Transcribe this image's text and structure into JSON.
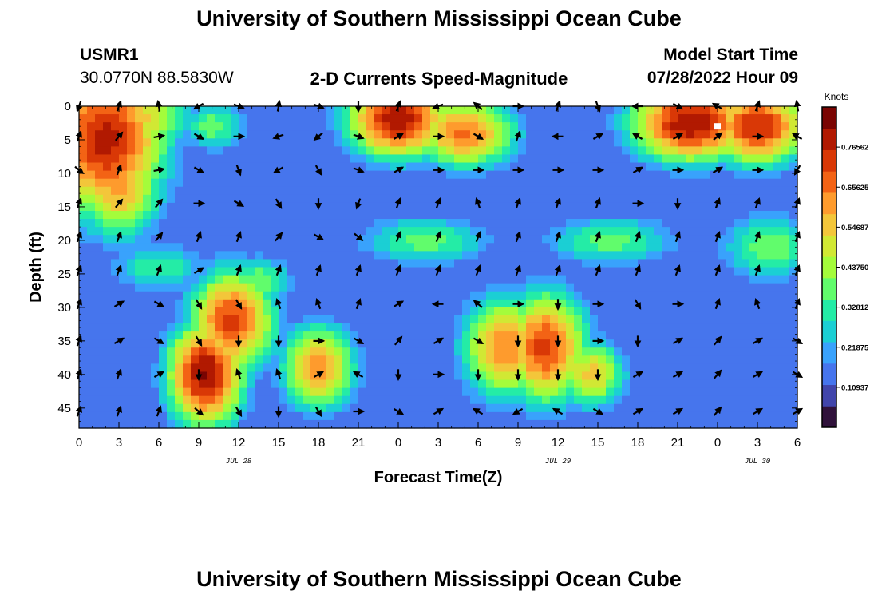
{
  "page": {
    "title": "University of Southern Mississippi Ocean Cube",
    "title_repeat": "University of Southern Mississippi Ocean Cube",
    "station_id": "USMR1",
    "coords": "30.0770N  88.5830W",
    "subtitle": "2-D Currents Speed-Magnitude",
    "model_start_label": "Model Start Time",
    "model_start_value": "07/28/2022 Hour 09"
  },
  "chart_data": {
    "type": "heatmap",
    "title": "2-D Currents Speed-Magnitude",
    "xlabel": "Forecast Time(Z)",
    "ylabel": "Depth (ft)",
    "x_tick_labels": [
      "0",
      "3",
      "6",
      "9",
      "12",
      "15",
      "18",
      "21",
      "0",
      "3",
      "6",
      "9",
      "12",
      "15",
      "18",
      "21",
      "0",
      "3",
      "6"
    ],
    "x_range_hours": [
      0,
      54
    ],
    "date_labels": [
      {
        "text": "JUL 28",
        "hour": 12
      },
      {
        "text": "JUL 29",
        "hour": 36
      },
      {
        "text": "JUL 30",
        "hour": 51
      }
    ],
    "y_ticks": [
      0,
      5,
      10,
      15,
      20,
      25,
      30,
      35,
      40,
      45
    ],
    "y_range_ft": [
      0,
      48
    ],
    "colorbar": {
      "label": "Knots",
      "ticks": [
        "0.76562",
        "0.65625",
        "0.54687",
        "0.43750",
        "0.32812",
        "0.21875",
        "0.10937"
      ],
      "range": [
        0,
        0.875
      ],
      "colors": [
        "#30123b",
        "#4145ab",
        "#4675ed",
        "#39a2fc",
        "#1bcfd4",
        "#24eca6",
        "#61fc6c",
        "#a4fc3b",
        "#d1e834",
        "#f3c63a",
        "#fe9b2d",
        "#f36315",
        "#d93806",
        "#b11901",
        "#7a0402"
      ]
    },
    "speed_blobs": [
      {
        "hour": 2,
        "depth": 5,
        "peak": 0.78,
        "sx": 3.5,
        "sy": 9
      },
      {
        "hour": 3,
        "depth": 12,
        "peak": 0.6,
        "sx": 2.5,
        "sy": 6
      },
      {
        "hour": 4.5,
        "depth": 2,
        "peak": 0.55,
        "sx": 3,
        "sy": 4
      },
      {
        "hour": 9.5,
        "depth": 40,
        "peak": 0.83,
        "sx": 2.2,
        "sy": 6
      },
      {
        "hour": 11.5,
        "depth": 32,
        "peak": 0.72,
        "sx": 2.5,
        "sy": 6
      },
      {
        "hour": 18,
        "depth": 39,
        "peak": 0.62,
        "sx": 2.2,
        "sy": 5
      },
      {
        "hour": 24,
        "depth": 2,
        "peak": 0.8,
        "sx": 3,
        "sy": 4.5
      },
      {
        "hour": 29,
        "depth": 4,
        "peak": 0.66,
        "sx": 3,
        "sy": 4
      },
      {
        "hour": 32,
        "depth": 36,
        "peak": 0.64,
        "sx": 2.5,
        "sy": 6
      },
      {
        "hour": 35,
        "depth": 36,
        "peak": 0.72,
        "sx": 2.5,
        "sy": 6.5
      },
      {
        "hour": 38.5,
        "depth": 40,
        "peak": 0.55,
        "sx": 2,
        "sy": 4
      },
      {
        "hour": 46,
        "depth": 2.5,
        "peak": 0.82,
        "sx": 3.5,
        "sy": 4.5
      },
      {
        "hour": 51,
        "depth": 3,
        "peak": 0.76,
        "sx": 3,
        "sy": 4.5
      },
      {
        "hour": 13.5,
        "depth": 26,
        "peak": 0.4,
        "sx": 2,
        "sy": 3
      },
      {
        "hour": 6,
        "depth": 24,
        "peak": 0.35,
        "sx": 3,
        "sy": 3
      },
      {
        "hour": 26,
        "depth": 20,
        "peak": 0.38,
        "sx": 4,
        "sy": 3
      },
      {
        "hour": 40,
        "depth": 20,
        "peak": 0.38,
        "sx": 4,
        "sy": 3
      },
      {
        "hour": 52,
        "depth": 21,
        "peak": 0.4,
        "sx": 3,
        "sy": 4
      },
      {
        "hour": 10,
        "depth": 3,
        "peak": 0.38,
        "sx": 2,
        "sy": 3
      }
    ],
    "baseline_speed": 0.14,
    "vector_hours": [
      0,
      3,
      6,
      9,
      12,
      15,
      18,
      21,
      24,
      27,
      30,
      33,
      36,
      39,
      42,
      45,
      48,
      51,
      54
    ],
    "vector_depths": [
      0,
      4.5,
      9.5,
      14.5,
      19.5,
      24.5,
      29.5,
      35,
      40,
      45.5
    ],
    "vector_directions_deg": [
      [
        200,
        20,
        350,
        240,
        110,
        10,
        110,
        180,
        20,
        250,
        310,
        90,
        20,
        160,
        270,
        120,
        300,
        20,
        350
      ],
      [
        20,
        40,
        80,
        120,
        90,
        250,
        230,
        110,
        60,
        90,
        120,
        20,
        270,
        60,
        300,
        60,
        50,
        90,
        300
      ],
      [
        130,
        20,
        80,
        120,
        160,
        240,
        150,
        110,
        60,
        90,
        90,
        90,
        90,
        90,
        60,
        90,
        60,
        90,
        210
      ],
      [
        20,
        40,
        40,
        90,
        120,
        150,
        180,
        200,
        20,
        20,
        340,
        20,
        20,
        20,
        90,
        180,
        20,
        20,
        20
      ],
      [
        20,
        20,
        40,
        20,
        20,
        40,
        120,
        130,
        20,
        20,
        20,
        20,
        20,
        20,
        20,
        20,
        20,
        20,
        20
      ],
      [
        20,
        20,
        20,
        60,
        20,
        20,
        20,
        20,
        20,
        20,
        20,
        20,
        20,
        20,
        20,
        20,
        20,
        20,
        20
      ],
      [
        20,
        60,
        120,
        150,
        150,
        340,
        340,
        20,
        60,
        270,
        310,
        90,
        180,
        90,
        150,
        90,
        20,
        340,
        20
      ],
      [
        20,
        60,
        120,
        150,
        180,
        180,
        90,
        120,
        40,
        60,
        120,
        180,
        180,
        90,
        180,
        60,
        40,
        60,
        120
      ],
      [
        20,
        20,
        60,
        180,
        340,
        340,
        60,
        300,
        180,
        90,
        180,
        180,
        180,
        180,
        60,
        60,
        40,
        60,
        120
      ],
      [
        20,
        20,
        20,
        130,
        150,
        180,
        150,
        90,
        120,
        60,
        300,
        240,
        300,
        120,
        60,
        60,
        40,
        60,
        60
      ]
    ],
    "marker": {
      "hour": 48,
      "depth": 3
    }
  }
}
